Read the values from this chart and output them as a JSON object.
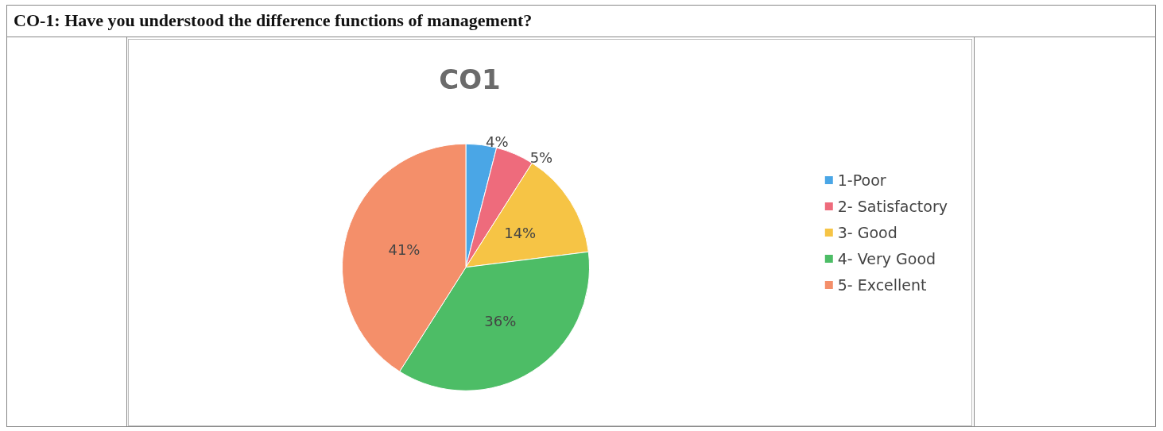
{
  "chart_data": {
    "type": "pie",
    "title": "CO-1: Have you understood the difference functions of management?",
    "subtitle": "CO1",
    "categories": [
      "1-Poor",
      "2- Satisfactory",
      "3- Good",
      "4- Very Good",
      "5- Excellent"
    ],
    "values": [
      4,
      5,
      14,
      36,
      41
    ],
    "colors": [
      "#4aa6e6",
      "#ee6b7c",
      "#f6c445",
      "#4dbd66",
      "#f48f6a"
    ],
    "value_labels": [
      "4%",
      "5%",
      "14%",
      "36%",
      "41%"
    ],
    "legend": "right"
  }
}
